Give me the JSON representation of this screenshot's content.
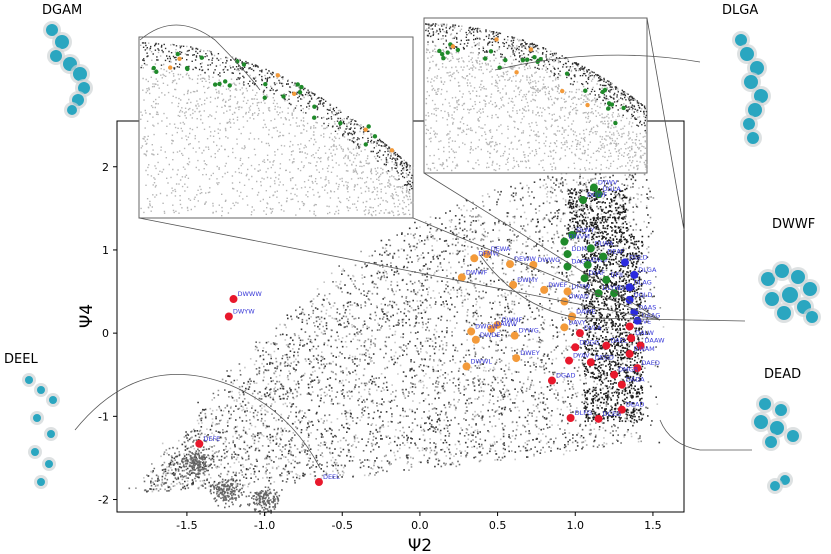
{
  "chart_data": {
    "type": "scatter",
    "xlabel": "Ψ2",
    "ylabel": "Ψ4",
    "xlim": [
      -1.95,
      1.7
    ],
    "ylim": [
      -2.15,
      2.55
    ],
    "xticks": [
      "-1.5",
      "-1.0",
      "-0.5",
      "0.0",
      "0.5",
      "1.0",
      "1.5"
    ],
    "xtick_values": [
      -1.5,
      -1.0,
      -0.5,
      0.0,
      0.5,
      1.0,
      1.5
    ],
    "yticks": [
      "-2",
      "-1",
      "0",
      "1",
      "2"
    ],
    "ytick_values": [
      -2,
      -1,
      0,
      1,
      2
    ],
    "structure_labels": [
      "DGAM",
      "DLGA",
      "DWWF",
      "DEEL",
      "DEAD"
    ],
    "colors": {
      "red": "#e8182c",
      "orange": "#f39a3a",
      "green": "#1f8a2a",
      "blue": "#2a2adf",
      "label": "#3a3ad8"
    },
    "series": [
      {
        "color": "red",
        "points": [
          {
            "label": "DWWW",
            "x": -1.2,
            "y": 0.41
          },
          {
            "label": "DWYW",
            "x": -1.23,
            "y": 0.2
          },
          {
            "label": "DEFE",
            "x": -1.42,
            "y": -1.33
          },
          {
            "label": "DEEL",
            "x": -0.65,
            "y": -1.79
          },
          {
            "label": "DEVE",
            "x": 1.35,
            "y": 0.08
          },
          {
            "label": "DALW",
            "x": 1.36,
            "y": -0.06
          },
          {
            "label": "DAAW",
            "x": 1.42,
            "y": -0.15
          },
          {
            "label": "DWAM",
            "x": 1.35,
            "y": -0.25
          },
          {
            "label": "DAED",
            "x": 1.4,
            "y": -0.42
          },
          {
            "label": "DMGR",
            "x": 1.25,
            "y": -0.5
          },
          {
            "label": "DADA",
            "x": 1.3,
            "y": -0.62
          },
          {
            "label": "DEAD",
            "x": 1.3,
            "y": -0.92
          },
          {
            "label": "DVLA",
            "x": 1.03,
            "y": 0.0
          },
          {
            "label": "DDGG",
            "x": 1.0,
            "y": -0.17
          },
          {
            "label": "DAEL",
            "x": 1.2,
            "y": -0.15
          },
          {
            "label": "DYAV",
            "x": 0.96,
            "y": -0.33
          },
          {
            "label": "DEGD",
            "x": 1.1,
            "y": -0.35
          },
          {
            "label": "DGAD",
            "x": 0.85,
            "y": -0.57
          },
          {
            "label": "DLFG",
            "x": 0.97,
            "y": -1.02
          },
          {
            "label": "DCEG",
            "x": 1.15,
            "y": -1.03
          }
        ]
      },
      {
        "color": "orange",
        "points": [
          {
            "label": "DWWF",
            "x": 0.27,
            "y": 0.67
          },
          {
            "label": "DEWA",
            "x": 0.43,
            "y": 0.95
          },
          {
            "label": "DFMW",
            "x": 0.35,
            "y": 0.9
          },
          {
            "label": "DEWW",
            "x": 0.58,
            "y": 0.83
          },
          {
            "label": "DWWG",
            "x": 0.73,
            "y": 0.82
          },
          {
            "label": "DWMY",
            "x": 0.6,
            "y": 0.58
          },
          {
            "label": "DWEF",
            "x": 0.8,
            "y": 0.52
          },
          {
            "label": "DWAD",
            "x": 0.93,
            "y": 0.38
          },
          {
            "label": "DMIW",
            "x": 0.95,
            "y": 0.5
          },
          {
            "label": "DWMF",
            "x": 0.5,
            "y": 0.1
          },
          {
            "label": "DAWW",
            "x": 0.46,
            "y": 0.05
          },
          {
            "label": "DWGW",
            "x": 0.33,
            "y": 0.02
          },
          {
            "label": "DWDE",
            "x": 0.36,
            "y": -0.08
          },
          {
            "label": "DYWG",
            "x": 0.61,
            "y": -0.03
          },
          {
            "label": "DWWL",
            "x": 0.3,
            "y": -0.4
          },
          {
            "label": "DWEY",
            "x": 0.62,
            "y": -0.3
          },
          {
            "label": "DAVY",
            "x": 0.93,
            "y": 0.07
          },
          {
            "label": "DAWE",
            "x": 0.98,
            "y": 0.2
          }
        ]
      },
      {
        "color": "green",
        "points": [
          {
            "label": "DYWV",
            "x": 1.12,
            "y": 1.75
          },
          {
            "label": "DGLA",
            "x": 1.15,
            "y": 1.67
          },
          {
            "label": "DGWF",
            "x": 1.05,
            "y": 1.6
          },
          {
            "label": "DLWY",
            "x": 0.98,
            "y": 1.18
          },
          {
            "label": "DWVM",
            "x": 0.93,
            "y": 1.1
          },
          {
            "label": "DDMW",
            "x": 0.95,
            "y": 0.95
          },
          {
            "label": "DLWA",
            "x": 1.1,
            "y": 1.02
          },
          {
            "label": "DAGW",
            "x": 0.95,
            "y": 0.8
          },
          {
            "label": "DWIF",
            "x": 1.08,
            "y": 0.82
          },
          {
            "label": "DYAF",
            "x": 1.06,
            "y": 0.66
          },
          {
            "label": "DFII",
            "x": 1.2,
            "y": 0.64
          },
          {
            "label": "DLYW",
            "x": 1.15,
            "y": 0.48
          },
          {
            "label": "DIWA",
            "x": 1.25,
            "y": 0.48
          },
          {
            "label": "DEAF",
            "x": 1.18,
            "y": 0.92
          }
        ]
      },
      {
        "color": "blue",
        "points": [
          {
            "label": "DLAG",
            "x": 1.35,
            "y": 0.55
          },
          {
            "label": "DLGA",
            "x": 1.38,
            "y": 0.7
          },
          {
            "label": "DQLD",
            "x": 1.35,
            "y": 0.4
          },
          {
            "label": "DAAS",
            "x": 1.38,
            "y": 0.25
          },
          {
            "label": "DAAG",
            "x": 1.4,
            "y": 0.15
          },
          {
            "label": "DGLD",
            "x": 1.32,
            "y": 0.85
          }
        ]
      }
    ]
  }
}
